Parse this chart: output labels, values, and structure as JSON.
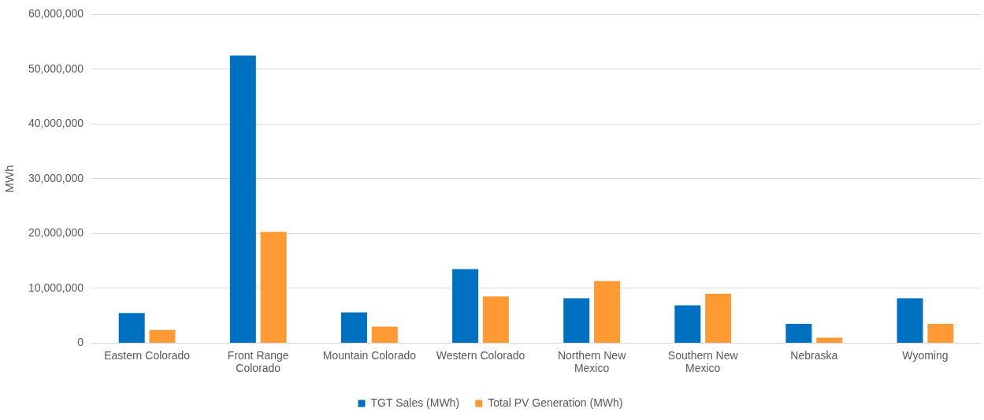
{
  "chart_data": {
    "type": "bar",
    "ylabel": "MWh",
    "categories": [
      "Eastern Colorado",
      "Front Range Colorado",
      "Mountain Colorado",
      "Western Colorado",
      "Northern New Mexico",
      "Southern New Mexico",
      "Nebraska",
      "Wyoming"
    ],
    "series": [
      {
        "name": "TGT Sales (MWh)",
        "color": "#0070c0",
        "values": [
          5500000,
          52500000,
          5600000,
          13500000,
          8200000,
          6900000,
          3500000,
          8200000
        ]
      },
      {
        "name": "Total PV Generation (MWh)",
        "color": "#ff9933",
        "values": [
          2400000,
          20300000,
          3000000,
          8500000,
          11300000,
          9000000,
          1000000,
          3500000
        ]
      }
    ],
    "ylim": [
      0,
      60000000
    ],
    "yticks": [
      0,
      {
        "value": 10000000,
        "label": "10,000,000"
      },
      {
        "value": 20000000,
        "label": "20,000,000"
      },
      {
        "value": 30000000,
        "label": "30,000,000"
      },
      {
        "value": 40000000,
        "label": "40,000,000"
      },
      {
        "value": 50000000,
        "label": "50,000,000"
      },
      {
        "value": 60000000,
        "label": "60,000,000"
      }
    ],
    "grid": "y",
    "legend": "bottom"
  }
}
